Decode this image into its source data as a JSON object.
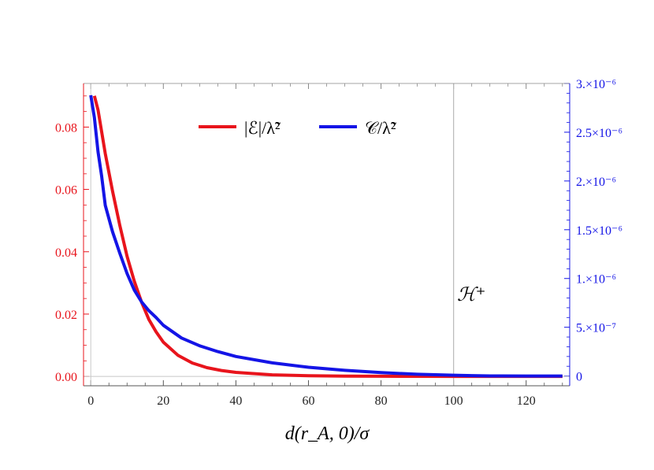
{
  "chart_data": {
    "type": "line",
    "title": "",
    "xlabel": "d(r_A, 0)/σ",
    "xlim": [
      -2,
      132
    ],
    "xticks": [
      0,
      20,
      40,
      60,
      80,
      100,
      120
    ],
    "xtick_labels": [
      "0",
      "20",
      "40",
      "60",
      "80",
      "100",
      "120"
    ],
    "y_left": {
      "lim": [
        -0.003,
        0.094
      ],
      "ticks": [
        0.0,
        0.02,
        0.04,
        0.06,
        0.08
      ],
      "tick_labels": [
        "0.00",
        "0.02",
        "0.04",
        "0.06",
        "0.08"
      ],
      "color": "#e8141c"
    },
    "y_right": {
      "lim": [
        -1e-07,
        3e-06
      ],
      "ticks": [
        0,
        5e-07,
        1e-06,
        1.5e-06,
        2e-06,
        2.5e-06,
        3e-06
      ],
      "tick_labels": [
        "0",
        "5.×10⁻⁷",
        "1.×10⁻⁶",
        "1.5×10⁻⁶",
        "2.×10⁻⁶",
        "2.5×10⁻⁶",
        "3.×10⁻⁶"
      ],
      "color": "#1414e6"
    },
    "legend_position": "top-center",
    "grid": false,
    "series": [
      {
        "name": "|ℰ|/λ̃²",
        "axis": "left",
        "color": "#e8141c",
        "x": [
          1,
          2,
          4,
          6,
          8,
          10,
          12,
          14,
          16,
          18,
          20,
          24,
          28,
          32,
          36,
          40,
          50,
          60,
          70,
          80,
          90,
          100,
          110,
          120,
          130
        ],
        "y": [
          0.09,
          0.0855,
          0.0715,
          0.0595,
          0.0485,
          0.0385,
          0.0305,
          0.0238,
          0.0183,
          0.0143,
          0.011,
          0.0068,
          0.0043,
          0.0028,
          0.0019,
          0.0013,
          0.0005,
          0.0002,
          0.0001,
          5e-05,
          2e-05,
          1e-05,
          0.0,
          0.0,
          0.0
        ]
      },
      {
        "name": "𝒞/λ̃²",
        "axis": "right",
        "color": "#1414e6",
        "x": [
          0,
          1,
          2,
          3,
          4,
          6,
          8,
          10,
          12,
          14,
          16,
          18,
          20,
          25,
          30,
          35,
          40,
          50,
          60,
          70,
          80,
          90,
          100,
          105,
          110,
          120,
          130
        ],
        "y": [
          2.88e-06,
          2.65e-06,
          2.3e-06,
          2.05e-06,
          1.75e-06,
          1.48e-06,
          1.26e-06,
          1.05e-06,
          8.8e-07,
          7.6e-07,
          6.7e-07,
          6e-07,
          5.2e-07,
          3.9e-07,
          3.1e-07,
          2.5e-07,
          2e-07,
          1.35e-07,
          9e-08,
          5.8e-08,
          3.5e-08,
          1.8e-08,
          8e-09,
          4e-09,
          1e-09,
          0.0,
          0.0
        ]
      }
    ],
    "annotations": [
      {
        "text": "ℋ⁺",
        "x": 100,
        "type": "vertical-line"
      }
    ]
  }
}
